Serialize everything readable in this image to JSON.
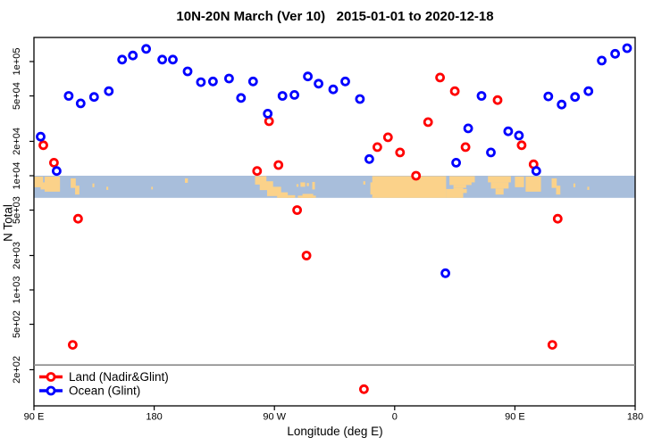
{
  "title": "10N-20N March (Ver 10)   2015-01-01 to 2020-12-18",
  "axes": {
    "x_label": "Longitude (deg E)",
    "y_label": "N Total",
    "x_ticks": [
      {
        "lon": 90,
        "label": "90 E"
      },
      {
        "lon": 180,
        "label": "180"
      },
      {
        "lon": 270,
        "label": "90 W"
      },
      {
        "lon": 360,
        "label": "0"
      },
      {
        "lon": 450,
        "label": "90 E"
      },
      {
        "lon": 540,
        "label": "180"
      }
    ],
    "y_ticks": [
      {
        "value": 200,
        "label": "2e+02"
      },
      {
        "value": 500,
        "label": "5e+02"
      },
      {
        "value": 1000,
        "label": "1e+03"
      },
      {
        "value": 2000,
        "label": "2e+03"
      },
      {
        "value": 5000,
        "label": "5e+03"
      },
      {
        "value": 10000,
        "label": "1e+04"
      },
      {
        "value": 20000,
        "label": "2e+04"
      },
      {
        "value": 50000,
        "label": "5e+04"
      },
      {
        "value": 100000,
        "label": "1e+05"
      }
    ]
  },
  "legend": {
    "items": [
      {
        "label": "Land (Nadir&Glint)",
        "color": "#ff0000"
      },
      {
        "label": "Ocean (Glint)",
        "color": "#0000ff"
      }
    ]
  },
  "colors": {
    "land_series": "#ff0000",
    "ocean_series": "#0000ff",
    "map_ocean": "#a8bedb",
    "map_land": "#fbd28a",
    "reference_line": "#8a8a8a",
    "frame": "#000000"
  },
  "chart_data": {
    "type": "scatter",
    "title": "10N-20N March (Ver 10)   2015-01-01 to 2020-12-18",
    "xlabel": "Longitude (deg E)",
    "ylabel": "N Total",
    "x_axis_note": "longitude axis runs eastward from 90E around the globe to 180 (90E,180,90W,0,90E,180); values >180 are continuous degrees east",
    "y_scale": "log",
    "xlim": [
      90,
      540
    ],
    "ylim": [
      100,
      160000
    ],
    "reference_line_y": 220,
    "map_band_value_range": [
      10000,
      6400
    ],
    "series": [
      {
        "name": "Land (Nadir&Glint)",
        "color": "#ff0000",
        "points": [
          [
            97,
            18500
          ],
          [
            105,
            13000
          ],
          [
            119,
            330
          ],
          [
            123,
            4200
          ],
          [
            257,
            11000
          ],
          [
            266,
            30000
          ],
          [
            273,
            12400
          ],
          [
            287,
            5000
          ],
          [
            294,
            2000
          ],
          [
            337,
            135
          ],
          [
            347,
            17800
          ],
          [
            355,
            21700
          ],
          [
            364,
            16000
          ],
          [
            376,
            10000
          ],
          [
            385,
            29500
          ],
          [
            394,
            72500
          ],
          [
            405,
            55000
          ],
          [
            413,
            17800
          ],
          [
            437,
            46000
          ],
          [
            455,
            18500
          ],
          [
            464,
            12600
          ],
          [
            478,
            330
          ],
          [
            482,
            4200
          ]
        ]
      },
      {
        "name": "Ocean (Glint)",
        "color": "#0000ff",
        "points": [
          [
            95,
            22000
          ],
          [
            107,
            11000
          ],
          [
            116,
            50000
          ],
          [
            125,
            43000
          ],
          [
            135,
            49000
          ],
          [
            146,
            55000
          ],
          [
            156,
            104000
          ],
          [
            164,
            113000
          ],
          [
            174,
            129000
          ],
          [
            186,
            104000
          ],
          [
            194,
            104000
          ],
          [
            205,
            82000
          ],
          [
            215,
            66000
          ],
          [
            224,
            67000
          ],
          [
            236,
            71000
          ],
          [
            245,
            48000
          ],
          [
            254,
            67000
          ],
          [
            265,
            35000
          ],
          [
            276,
            50000
          ],
          [
            285,
            51000
          ],
          [
            295,
            74000
          ],
          [
            303,
            64000
          ],
          [
            314,
            57000
          ],
          [
            323,
            67000
          ],
          [
            334,
            47000
          ],
          [
            341,
            14000
          ],
          [
            398,
            1400
          ],
          [
            406,
            13000
          ],
          [
            415,
            26000
          ],
          [
            425,
            50000
          ],
          [
            432,
            16000
          ],
          [
            445,
            24500
          ],
          [
            453,
            22500
          ],
          [
            466,
            11000
          ],
          [
            475,
            49500
          ],
          [
            485,
            42000
          ],
          [
            495,
            49000
          ],
          [
            505,
            55000
          ],
          [
            515,
            102000
          ],
          [
            525,
            117000
          ],
          [
            534,
            131000
          ]
        ]
      }
    ]
  },
  "map_band": {
    "description": "world coastline strip 10N-20N drawn across the plot",
    "land_segments": [
      [
        90,
        96.8,
        0.04,
        0.52
      ],
      [
        95,
        101,
        0.3,
        0.62
      ],
      [
        98,
        109.5,
        0.04,
        0.72
      ],
      [
        117.5,
        121.3,
        0.12,
        0.55
      ],
      [
        120.8,
        124,
        0.45,
        0.85
      ],
      [
        133.8,
        135.2,
        0.35,
        0.52
      ],
      [
        144.2,
        145.6,
        0.5,
        0.64
      ],
      [
        177.8,
        179,
        0.5,
        0.62
      ],
      [
        203,
        205.2,
        0.12,
        0.32
      ],
      [
        255.5,
        264,
        0.02,
        0.4
      ],
      [
        259,
        269,
        0.25,
        0.65
      ],
      [
        264.5,
        275,
        0.5,
        0.92
      ],
      [
        272,
        280,
        0.75,
        1.0
      ],
      [
        279,
        285.5,
        0.88,
        1.0
      ],
      [
        286.5,
        288,
        0.38,
        0.5
      ],
      [
        289.5,
        293,
        0.3,
        0.5
      ],
      [
        294.2,
        295.8,
        0.33,
        0.47
      ],
      [
        298.3,
        300.3,
        0.28,
        0.62
      ],
      [
        287.5,
        301,
        0.9,
        1.0
      ],
      [
        291,
        299,
        0.82,
        1.0
      ],
      [
        336.5,
        338,
        0.25,
        0.4
      ],
      [
        341.8,
        343.5,
        0.3,
        0.85
      ],
      [
        343.2,
        398.5,
        0.02,
        1.0
      ],
      [
        398.5,
        404.5,
        0.6,
        1.0
      ],
      [
        404,
        411.3,
        0.55,
        1.0
      ],
      [
        411,
        414,
        0.6,
        0.78
      ],
      [
        401,
        417.5,
        0.02,
        0.42
      ],
      [
        404,
        413.5,
        0.42,
        0.55
      ],
      [
        416,
        420,
        0.02,
        0.3
      ],
      [
        429.8,
        447,
        0.02,
        0.3
      ],
      [
        432,
        445.3,
        0.3,
        0.58
      ],
      [
        435.5,
        441.5,
        0.58,
        0.85
      ],
      [
        450,
        456.8,
        0.04,
        0.52
      ],
      [
        458,
        469.5,
        0.04,
        0.72
      ],
      [
        477.5,
        481.3,
        0.12,
        0.55
      ],
      [
        480.8,
        484,
        0.45,
        0.85
      ],
      [
        493.8,
        495.2,
        0.35,
        0.52
      ],
      [
        504.2,
        505.6,
        0.5,
        0.64
      ]
    ]
  }
}
